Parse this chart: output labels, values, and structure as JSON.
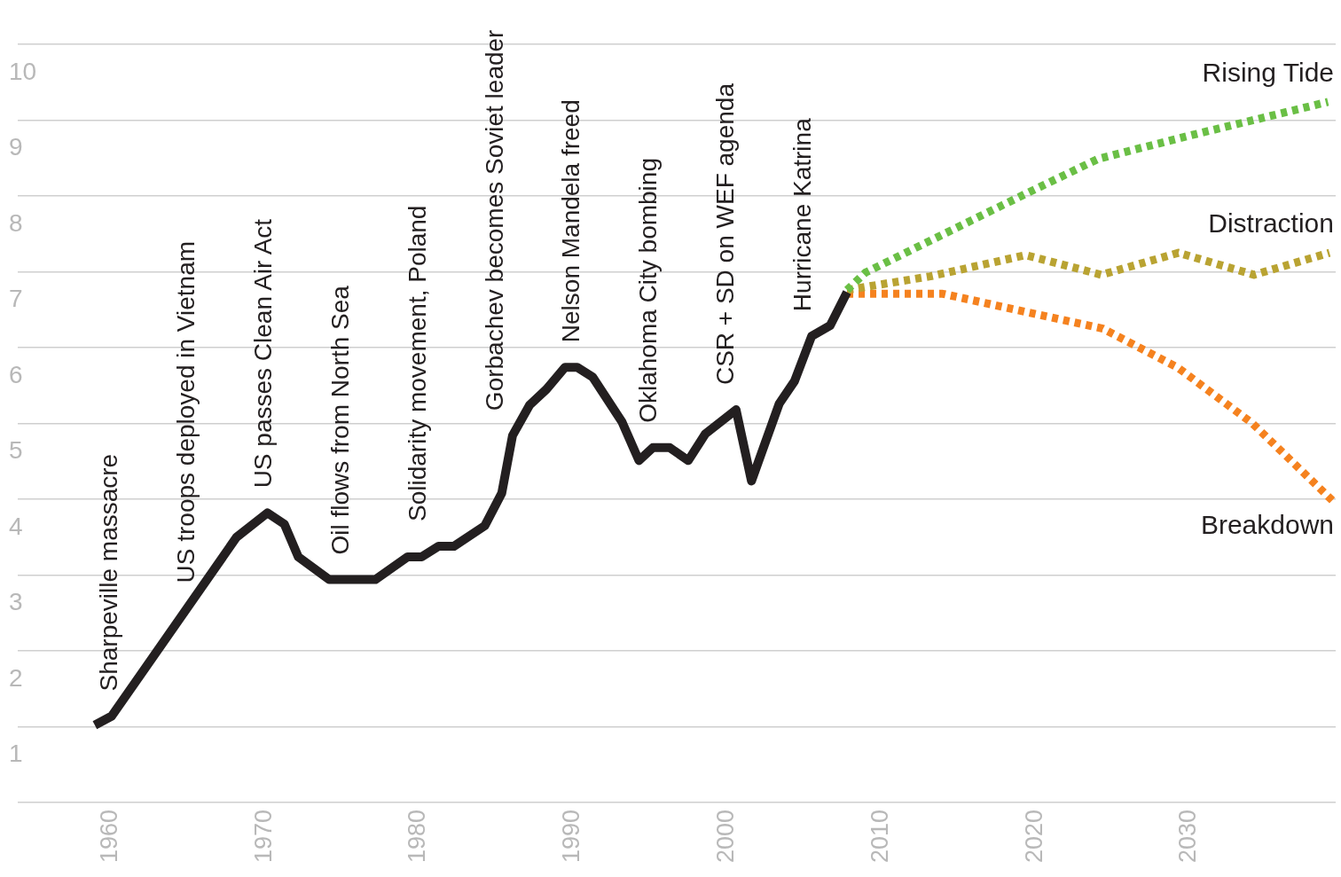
{
  "chart_data": {
    "type": "line",
    "xlim": [
      1954,
      2039.5
    ],
    "xticks": [
      1960,
      1970,
      1980,
      1990,
      2000,
      2010,
      2020,
      2030
    ],
    "ylim": [
      0,
      10
    ],
    "yticks": [
      {
        "value": 0,
        "label": null
      },
      1,
      2,
      3,
      4,
      5,
      6,
      7,
      8,
      9,
      10
    ],
    "grid": "y",
    "legend": false,
    "marker": "none",
    "series": [
      {
        "color": "#231f20",
        "line_style": "solid",
        "x": [
          1959.0,
          1960.1,
          1968.2,
          1970.2,
          1971.3,
          1972.2,
          1974.2,
          1977.2,
          1979.3,
          1980.2,
          1981.3,
          1982.3,
          1984.3,
          1985.4,
          1986.1,
          1987.2,
          1988.3,
          1989.5,
          1990.3,
          1991.3,
          1993.2,
          1994.3,
          1995.2,
          1996.3,
          1997.5,
          1998.6,
          2000.6,
          2001.6,
          2003.4,
          2004.4,
          2005.5,
          2006.7,
          2007.8
        ],
        "values": [
          1.02,
          1.14,
          3.5,
          3.82,
          3.67,
          3.24,
          2.94,
          2.94,
          3.24,
          3.24,
          3.38,
          3.38,
          3.65,
          4.08,
          4.84,
          5.24,
          5.45,
          5.74,
          5.74,
          5.61,
          5.02,
          4.51,
          4.68,
          4.68,
          4.51,
          4.86,
          5.18,
          4.24,
          5.26,
          5.56,
          6.15,
          6.29,
          6.73
        ]
      },
      {
        "name": "Rising Tide",
        "color": "#6abf45",
        "line_style": "dotted",
        "x": [
          2007.8,
          2009.0,
          2019.3,
          2024.1,
          2030.1,
          2039.0
        ],
        "values": [
          6.76,
          6.99,
          8.02,
          8.49,
          8.8,
          9.24
        ]
      },
      {
        "name": "Distraction",
        "color": "#b9a332",
        "line_style": "dotted",
        "x": [
          2007.8,
          2013.2,
          2019.4,
          2024.3,
          2029.3,
          2034.2,
          2039.1
        ],
        "values": [
          6.76,
          6.94,
          7.22,
          6.96,
          7.25,
          6.96,
          7.25
        ]
      },
      {
        "name": "Breakdown",
        "color": "#f5821f",
        "line_style": "dotted",
        "x": [
          2007.8,
          2014.0,
          2024.4,
          2029.3,
          2034.1,
          2039.3
        ],
        "values": [
          6.71,
          6.71,
          6.25,
          5.73,
          5.0,
          3.98
        ]
      }
    ],
    "annotations": [
      "Sharpeville massacre",
      "US troops deployed in Vietnam",
      "US passes Clean Air Act",
      "Oil flows from North Sea",
      "Solidarity movement, Poland",
      "Gorbachev becomes Soviet leader",
      "Nelson Mandela freed",
      "Oklahoma City bombing",
      "CSR + SD on WEF agenda",
      "Hurricane Katrina"
    ]
  }
}
